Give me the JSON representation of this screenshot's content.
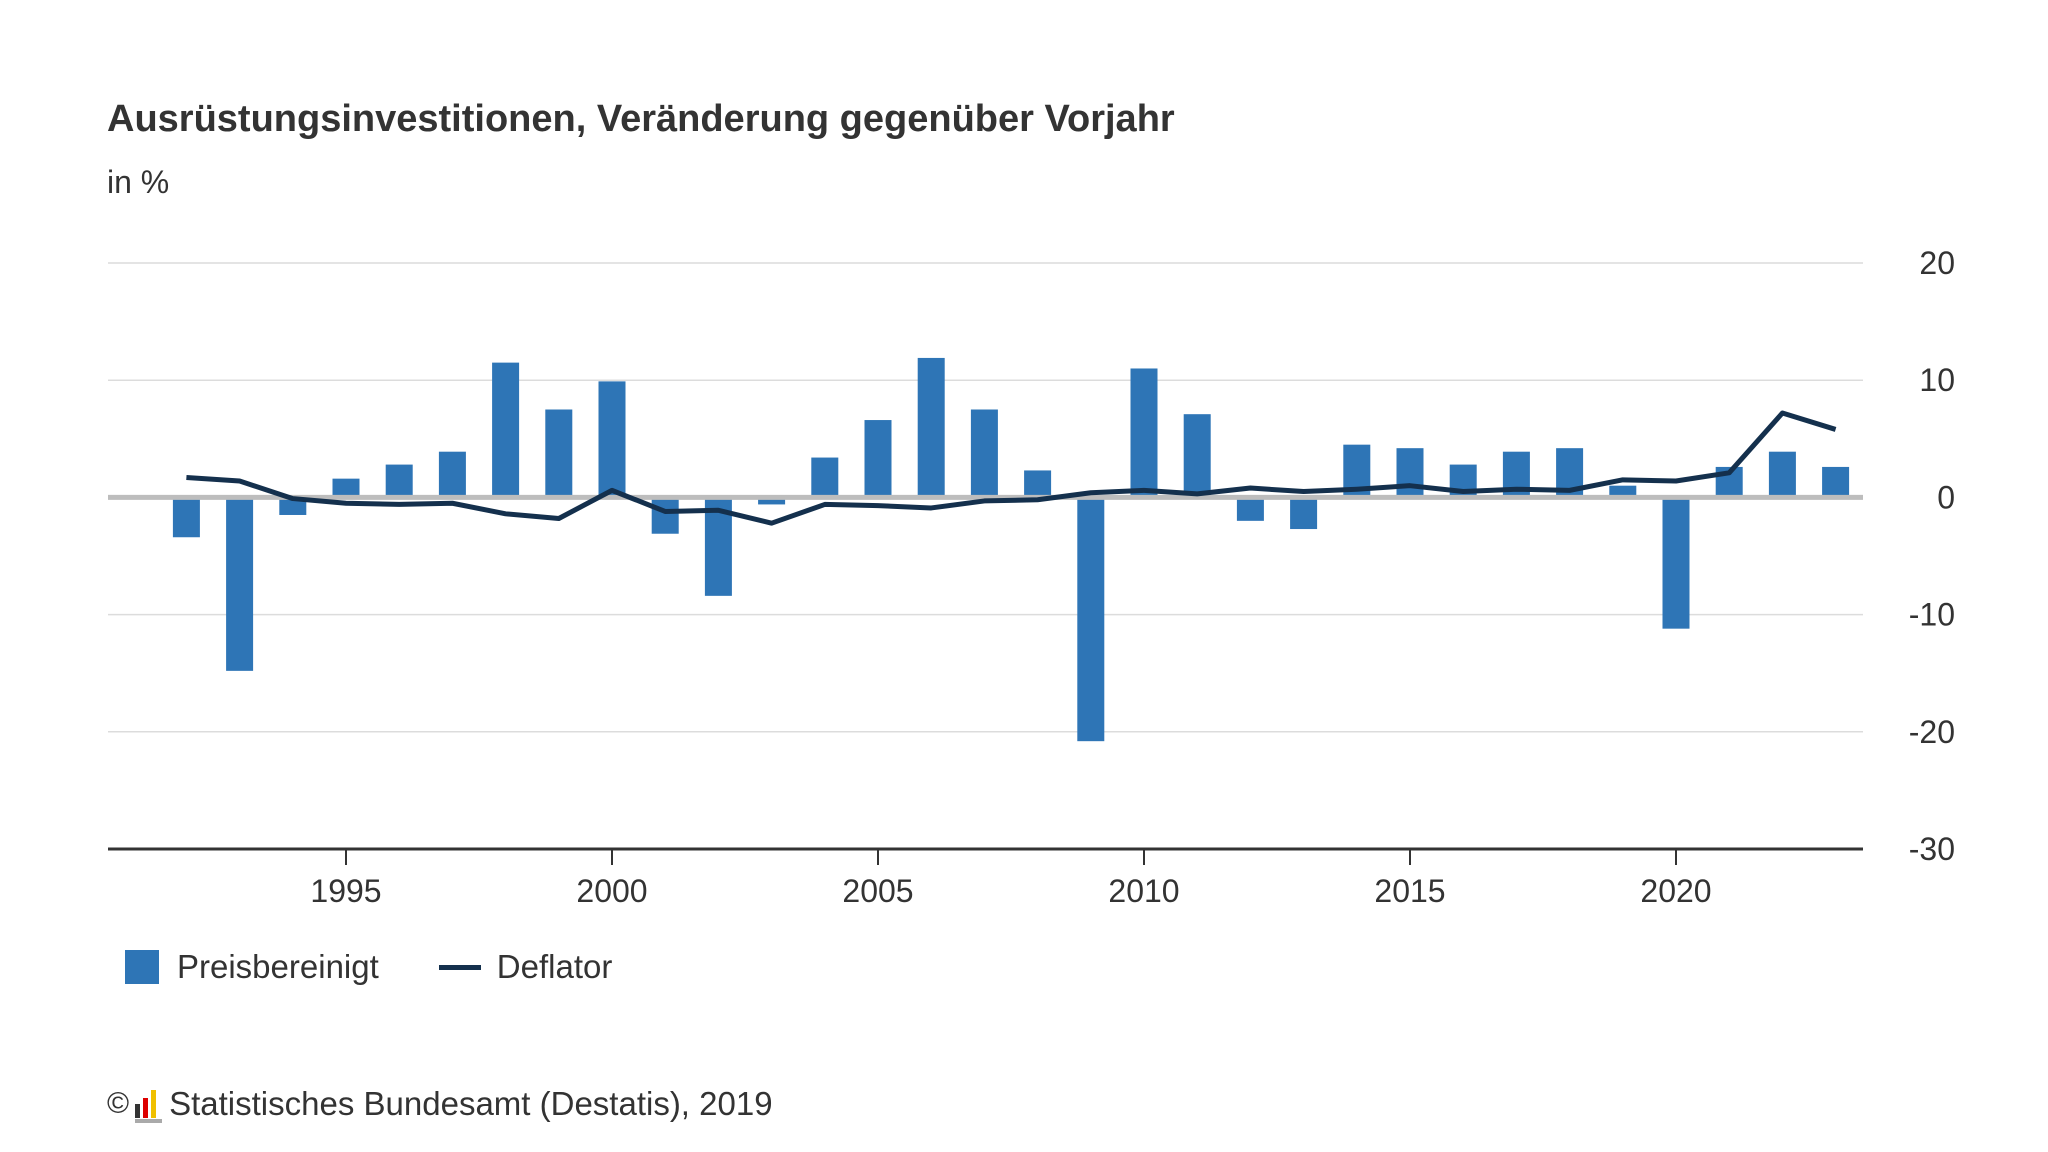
{
  "chart_data": {
    "type": "bar",
    "title": "Ausrüstungsinvestitionen, Veränderung gegenüber Vorjahr",
    "subtitle": "in %",
    "x": [
      1992,
      1993,
      1994,
      1995,
      1996,
      1997,
      1998,
      1999,
      2000,
      2001,
      2002,
      2003,
      2004,
      2005,
      2006,
      2007,
      2008,
      2009,
      2010,
      2011,
      2012,
      2013,
      2014,
      2015,
      2016,
      2017,
      2018,
      2019,
      2020,
      2021,
      2022,
      2023
    ],
    "xticks": [
      "1995",
      "2000",
      "2005",
      "2010",
      "2015",
      "2020"
    ],
    "yticks": [
      "20",
      "10",
      "0",
      "-10",
      "-20",
      "-30"
    ],
    "ylim": [
      -30,
      20
    ],
    "grid": true,
    "legend_placement": "bottom-left",
    "series": [
      {
        "name": "Preisbereinigt",
        "type": "bar",
        "color": "#2e75b6",
        "values": [
          -3.4,
          -14.8,
          -1.5,
          1.6,
          2.8,
          3.9,
          11.5,
          7.5,
          9.9,
          -3.1,
          -8.4,
          -0.6,
          3.4,
          6.6,
          11.9,
          7.5,
          2.3,
          -20.8,
          11.0,
          7.1,
          -2.0,
          -2.7,
          4.5,
          4.2,
          2.8,
          3.9,
          4.2,
          1.0,
          -11.2,
          2.6,
          3.9,
          2.6
        ]
      },
      {
        "name": "Deflator",
        "type": "line",
        "color": "#14304d",
        "values": [
          1.7,
          1.4,
          -0.1,
          -0.5,
          -0.6,
          -0.5,
          -1.4,
          -1.8,
          0.6,
          -1.2,
          -1.1,
          -2.2,
          -0.6,
          -0.7,
          -0.9,
          -0.3,
          -0.2,
          0.4,
          0.6,
          0.3,
          0.8,
          0.5,
          0.7,
          1.0,
          0.5,
          0.7,
          0.6,
          1.5,
          1.4,
          2.1,
          7.2,
          5.8
        ]
      }
    ]
  },
  "footer": {
    "copyright_symbol": "©",
    "source": "Statistisches Bundesamt (Destatis), 2019"
  }
}
